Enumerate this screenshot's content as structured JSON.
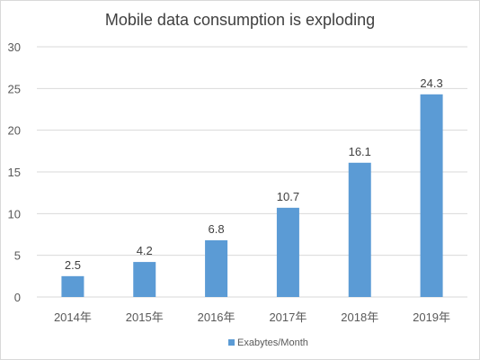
{
  "chart_data": {
    "type": "bar",
    "title": "Mobile data consumption is exploding",
    "categories": [
      "2014年",
      "2015年",
      "2016年",
      "2017年",
      "2018年",
      "2019年"
    ],
    "series": [
      {
        "name": "Exabytes/Month",
        "values": [
          2.5,
          4.2,
          6.8,
          10.7,
          16.1,
          24.3
        ],
        "color": "#5b9bd5"
      }
    ],
    "data_labels": [
      "2.5",
      "4.2",
      "6.8",
      "10.7",
      "16.1",
      "24.3"
    ],
    "y_ticks": [
      "0",
      "5",
      "10",
      "15",
      "20",
      "25",
      "30"
    ],
    "ylim": [
      0,
      30
    ],
    "grid": true,
    "legend_position": "bottom",
    "xlabel": "",
    "ylabel": ""
  }
}
